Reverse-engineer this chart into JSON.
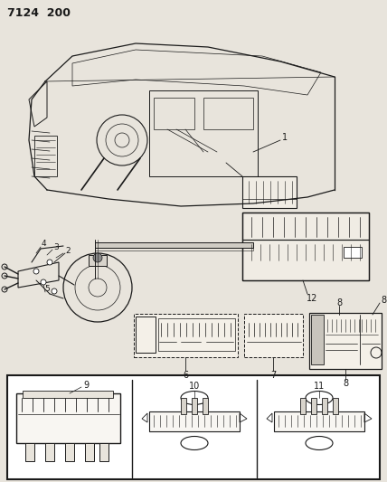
{
  "title": "7124  200",
  "bg_color": "#e8e4dc",
  "line_color": "#1a1a1a",
  "fig_width": 4.28,
  "fig_height": 5.33,
  "dpi": 100,
  "white": "#ffffff",
  "gray_light": "#d0ccc4"
}
